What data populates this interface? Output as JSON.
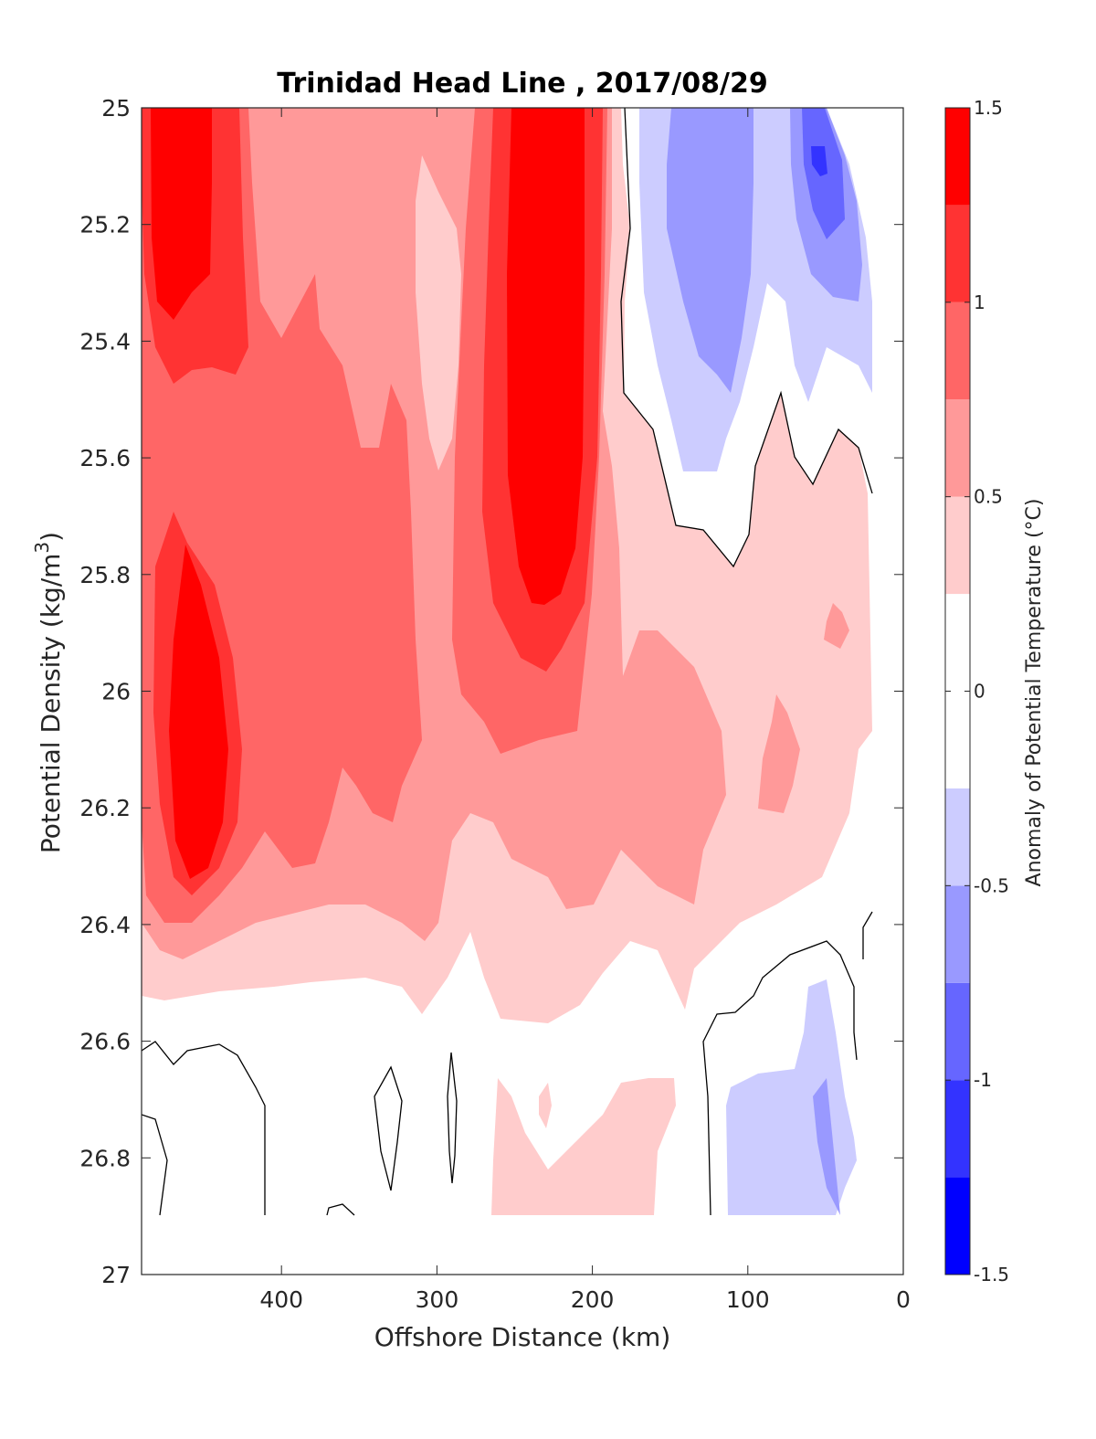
{
  "chart_data": {
    "type": "heatmap",
    "subtype": "filled-contour",
    "title": "Trinidad Head Line , 2017/08/29",
    "xlabel": "Offshore Distance (km)",
    "ylabel": "Potential Density (kg/m",
    "ylabel_superscript": "3",
    "ylabel_suffix": ")",
    "xlim": [
      490,
      0
    ],
    "ylim": [
      25,
      27
    ],
    "x_reversed": true,
    "y_reversed": true,
    "x_ticks": [
      400,
      300,
      200,
      100,
      0
    ],
    "y_ticks": [
      25,
      25.2,
      25.4,
      25.6,
      25.8,
      26,
      26.2,
      26.4,
      26.6,
      26.8,
      27
    ],
    "y_tick_labels": [
      "25",
      "25.2",
      "25.4",
      "25.6",
      "25.8",
      "26",
      "26.2",
      "26.4",
      "26.6",
      "26.8",
      "27"
    ],
    "colorbar": {
      "label": "Anomaly of Potential Temperature (°C)",
      "range": [
        -1.5,
        1.5
      ],
      "ticks": [
        1.5,
        1,
        0.5,
        0,
        -0.5,
        -1,
        -1.5
      ],
      "tick_labels": [
        "1.5",
        "1",
        "0.5",
        "0",
        "-0.5",
        "-1",
        "-1.5"
      ],
      "levels": [
        -1.5,
        -1.25,
        -1.0,
        -0.75,
        -0.5,
        -0.25,
        0.25,
        0.5,
        0.75,
        1.0,
        1.25,
        1.5
      ],
      "colors": [
        "#0000ff",
        "#3333ff",
        "#6666ff",
        "#9999ff",
        "#ccccff",
        "#ffffff",
        "#ffcccc",
        "#ff9999",
        "#ff6666",
        "#ff3333",
        "#ff0000"
      ]
    },
    "zero_contour_color": "#000000",
    "grid": false,
    "legend": "colorbar-right",
    "features": [
      {
        "description": "warm core",
        "x_range": [
          480,
          440
        ],
        "y_range": [
          25.0,
          25.35
        ],
        "max_anomaly": 1.5
      },
      {
        "description": "warm core",
        "x_range": [
          260,
          200
        ],
        "y_range": [
          25.0,
          25.85
        ],
        "max_anomaly": 1.5
      },
      {
        "description": "warm core",
        "x_range": [
          470,
          440
        ],
        "y_range": [
          25.75,
          26.3
        ],
        "max_anomaly": 1.25
      },
      {
        "description": "cool core",
        "x_range": [
          140,
          100
        ],
        "y_range": [
          25.0,
          25.5
        ],
        "max_anomaly": -0.75
      },
      {
        "description": "cool core",
        "x_range": [
          60,
          40
        ],
        "y_range": [
          25.05,
          25.2
        ],
        "max_anomaly": -1.25
      },
      {
        "description": "cool patch",
        "x_range": [
          110,
          30
        ],
        "y_range": [
          26.5,
          26.9
        ],
        "max_anomaly": -0.75
      }
    ]
  }
}
